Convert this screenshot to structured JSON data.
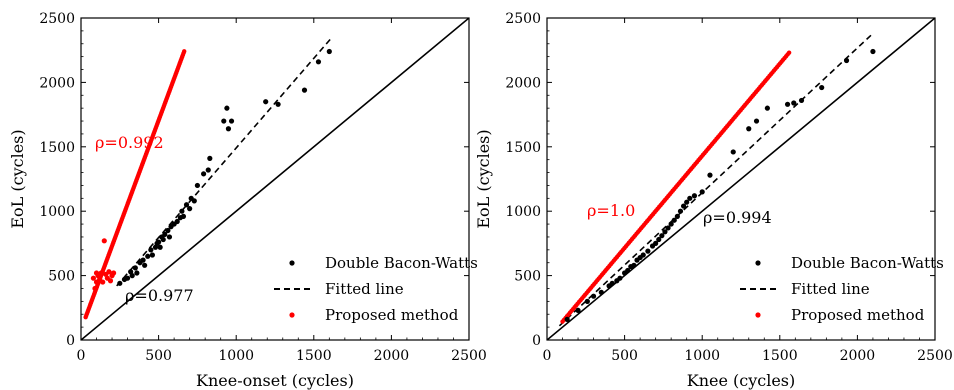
{
  "chart_data": [
    {
      "type": "scatter",
      "xlabel": "Knee-onset (cycles)",
      "ylabel": "EoL (cycles)",
      "xlim": [
        0,
        2500
      ],
      "ylim": [
        0,
        2500
      ],
      "xticks": [
        "0",
        "500",
        "1000",
        "1500",
        "2000",
        "2500"
      ],
      "yticks": [
        "0",
        "500",
        "1000",
        "1500",
        "2000",
        "2500"
      ],
      "legend_position": "bottom-right",
      "legend": [
        "Double Bacon-Watts",
        "Fitted line",
        "Proposed method"
      ],
      "reference_line": "y = x",
      "series": [
        {
          "name": "Double Bacon-Watts",
          "color": "#000000",
          "points": [
            [
              250,
              440
            ],
            [
              280,
              470
            ],
            [
              300,
              480
            ],
            [
              320,
              530
            ],
            [
              330,
              500
            ],
            [
              350,
              560
            ],
            [
              360,
              520
            ],
            [
              380,
              600
            ],
            [
              400,
              620
            ],
            [
              410,
              580
            ],
            [
              430,
              650
            ],
            [
              450,
              700
            ],
            [
              460,
              660
            ],
            [
              480,
              720
            ],
            [
              490,
              750
            ],
            [
              500,
              760
            ],
            [
              510,
              720
            ],
            [
              520,
              800
            ],
            [
              530,
              780
            ],
            [
              540,
              820
            ],
            [
              560,
              850
            ],
            [
              570,
              800
            ],
            [
              580,
              880
            ],
            [
              600,
              900
            ],
            [
              620,
              920
            ],
            [
              640,
              950
            ],
            [
              650,
              1000
            ],
            [
              660,
              960
            ],
            [
              680,
              1050
            ],
            [
              700,
              1020
            ],
            [
              710,
              1100
            ],
            [
              730,
              1080
            ],
            [
              750,
              1200
            ],
            [
              790,
              1290
            ],
            [
              820,
              1320
            ],
            [
              830,
              1410
            ],
            [
              920,
              1700
            ],
            [
              940,
              1800
            ],
            [
              950,
              1640
            ],
            [
              970,
              1700
            ],
            [
              1190,
              1850
            ],
            [
              1270,
              1830
            ],
            [
              1440,
              1940
            ],
            [
              1530,
              2160
            ],
            [
              1600,
              2240
            ]
          ]
        },
        {
          "name": "Fitted line",
          "color": "#000000",
          "dash": true,
          "x": [
            230,
            1610
          ],
          "y": [
            420,
            2340
          ]
        },
        {
          "name": "Proposed method",
          "color": "#ff0000",
          "x_range": [
            30,
            665
          ],
          "slope": 3.25,
          "intercept": 80,
          "extra_points": [
            [
              80,
              480
            ],
            [
              90,
              400
            ],
            [
              100,
              520
            ],
            [
              100,
              450
            ],
            [
              110,
              500
            ],
            [
              120,
              470
            ],
            [
              130,
              520
            ],
            [
              140,
              450
            ],
            [
              150,
              770
            ],
            [
              160,
              510
            ],
            [
              170,
              480
            ],
            [
              180,
              530
            ],
            [
              190,
              460
            ],
            [
              200,
              500
            ],
            [
              210,
              520
            ]
          ]
        }
      ],
      "annotation": {
        "text": "ρ=0.992",
        "color": "#ff0000"
      },
      "annotation2": {
        "text": "ρ=0.977",
        "color": "#000000"
      }
    },
    {
      "type": "scatter",
      "xlabel": "Knee (cycles)",
      "ylabel": "EoL (cycles)",
      "xlim": [
        0,
        2500
      ],
      "ylim": [
        0,
        2500
      ],
      "xticks": [
        "0",
        "500",
        "1000",
        "1500",
        "2000",
        "2500"
      ],
      "yticks": [
        "0",
        "500",
        "1000",
        "1500",
        "2000",
        "2500"
      ],
      "legend_position": "bottom-right",
      "legend": [
        "Double Bacon-Watts",
        "Fitted line",
        "Proposed method"
      ],
      "reference_line": "y = x",
      "series": [
        {
          "name": "Double Bacon-Watts",
          "color": "#000000",
          "points": [
            [
              130,
              160
            ],
            [
              200,
              230
            ],
            [
              260,
              300
            ],
            [
              300,
              340
            ],
            [
              350,
              370
            ],
            [
              400,
              420
            ],
            [
              420,
              440
            ],
            [
              450,
              460
            ],
            [
              470,
              480
            ],
            [
              500,
              520
            ],
            [
              520,
              540
            ],
            [
              540,
              570
            ],
            [
              560,
              580
            ],
            [
              580,
              620
            ],
            [
              600,
              640
            ],
            [
              620,
              660
            ],
            [
              650,
              690
            ],
            [
              680,
              730
            ],
            [
              700,
              750
            ],
            [
              720,
              780
            ],
            [
              740,
              810
            ],
            [
              760,
              840
            ],
            [
              780,
              870
            ],
            [
              800,
              900
            ],
            [
              820,
              930
            ],
            [
              840,
              960
            ],
            [
              860,
              1000
            ],
            [
              880,
              1040
            ],
            [
              900,
              1070
            ],
            [
              920,
              1100
            ],
            [
              950,
              1120
            ],
            [
              1000,
              1150
            ],
            [
              1050,
              1280
            ],
            [
              1200,
              1460
            ],
            [
              1300,
              1640
            ],
            [
              1350,
              1700
            ],
            [
              1420,
              1800
            ],
            [
              1550,
              1830
            ],
            [
              1590,
              1840
            ],
            [
              1640,
              1860
            ],
            [
              1770,
              1960
            ],
            [
              1930,
              2170
            ],
            [
              2100,
              2240
            ]
          ]
        },
        {
          "name": "Fitted line",
          "color": "#000000",
          "dash": true,
          "x": [
            80,
            2100
          ],
          "y": [
            110,
            2380
          ]
        },
        {
          "name": "Proposed method",
          "color": "#ff0000",
          "x_range": [
            100,
            1560
          ],
          "slope": 1.43,
          "intercept": 0,
          "extra_points": []
        }
      ],
      "annotation": {
        "text": "ρ=1.0",
        "color": "#ff0000"
      },
      "annotation2": {
        "text": "ρ=0.994",
        "color": "#000000"
      }
    }
  ]
}
